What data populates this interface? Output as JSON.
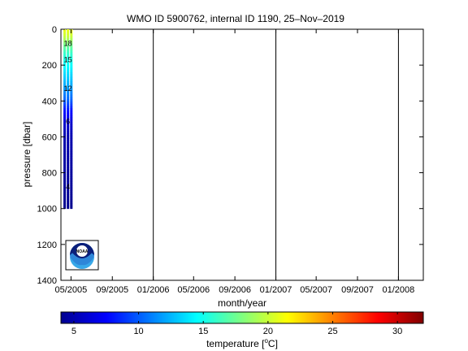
{
  "chart_data": {
    "type": "heatmap",
    "title": "WMO ID 5900762, internal ID 1190, 25–Nov–2019",
    "xlabel": "month/year",
    "ylabel": "pressure [dbar]",
    "x_ticks": [
      "05/2005",
      "09/2005",
      "01/2006",
      "05/2006",
      "09/2006",
      "01/2007",
      "05/2007",
      "09/2007",
      "01/2008"
    ],
    "xlim": [
      "2005-04-01",
      "2008-03-15"
    ],
    "y_ticks": [
      0,
      200,
      400,
      600,
      800,
      1000,
      1200,
      1400
    ],
    "ylim": [
      0,
      1400
    ],
    "y_reversed": true,
    "vertical_lines": [
      "2006-01-01",
      "2007-01-01",
      "2008-01-01"
    ],
    "profiles": [
      {
        "date": "2005-04-12",
        "max_pressure": 1000
      },
      {
        "date": "2005-04-22",
        "max_pressure": 1000
      },
      {
        "date": "2005-05-02",
        "max_pressure": 1000
      }
    ],
    "temperature_profile": [
      {
        "pressure": 0,
        "temp": 21.0
      },
      {
        "pressure": 40,
        "temp": 20.0
      },
      {
        "pressure": 80,
        "temp": 18.0
      },
      {
        "pressure": 130,
        "temp": 16.0
      },
      {
        "pressure": 180,
        "temp": 15.0
      },
      {
        "pressure": 250,
        "temp": 13.5
      },
      {
        "pressure": 320,
        "temp": 12.0
      },
      {
        "pressure": 400,
        "temp": 10.0
      },
      {
        "pressure": 450,
        "temp": 8.0
      },
      {
        "pressure": 520,
        "temp": 6.0
      },
      {
        "pressure": 600,
        "temp": 5.0
      },
      {
        "pressure": 1000,
        "temp": 4.0
      }
    ],
    "contour_labels": [
      {
        "text": "18",
        "pressure": 80
      },
      {
        "text": "15",
        "pressure": 170
      },
      {
        "text": "12",
        "pressure": 330
      },
      {
        "text": "6",
        "pressure": 515
      },
      {
        "text": "4",
        "pressure": 880
      }
    ],
    "colorbar": {
      "label": "temperature [°C]",
      "label_main": "temperature [",
      "label_sup": "o",
      "label_end": "C]",
      "min": 4,
      "max": 32,
      "ticks": [
        5,
        10,
        15,
        20,
        25,
        30
      ]
    },
    "logo": {
      "text": "NOAA"
    }
  }
}
